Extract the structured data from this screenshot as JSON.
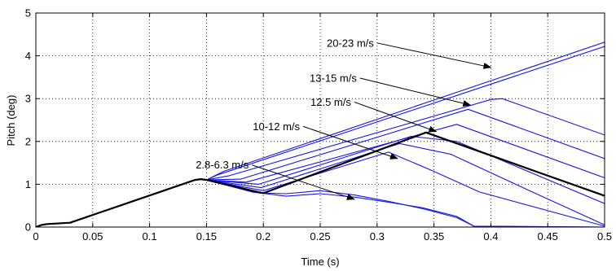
{
  "chart_data": {
    "type": "line",
    "xlabel": "Time (s)",
    "ylabel": "Pitch (deg)",
    "xlim": [
      0,
      0.5
    ],
    "ylim": [
      0,
      5
    ],
    "xticks": [
      0,
      0.05,
      0.1,
      0.15,
      0.2,
      0.25,
      0.3,
      0.35,
      0.4,
      0.45,
      0.5
    ],
    "xtick_labels": [
      "0",
      "0.05",
      "0.1",
      "0.15",
      "0.2",
      "0.25",
      "0.3",
      "0.35",
      "0.4",
      "0.45",
      "0.5"
    ],
    "yticks": [
      0,
      1,
      2,
      3,
      4,
      5
    ],
    "ytick_labels": [
      "0",
      "1",
      "2",
      "3",
      "4",
      "5"
    ],
    "grid": "dotted",
    "colors": {
      "series": "#1515e6",
      "highlight": "#000000"
    },
    "series": [
      {
        "highlight": false,
        "x": [
          0,
          0.005,
          0.01,
          0.03,
          0.14,
          0.145,
          0.15,
          0.19,
          0.22,
          0.25,
          0.28,
          0.31,
          0.34,
          0.37,
          0.385,
          0.5
        ],
        "y": [
          0,
          0.05,
          0.07,
          0.1,
          1.1,
          1.12,
          1.1,
          0.82,
          0.72,
          0.78,
          0.7,
          0.58,
          0.45,
          0.25,
          0.02,
          0.0
        ]
      },
      {
        "highlight": false,
        "x": [
          0,
          0.005,
          0.01,
          0.03,
          0.14,
          0.145,
          0.15,
          0.195,
          0.22,
          0.25,
          0.28,
          0.31,
          0.34,
          0.37,
          0.385,
          0.5
        ],
        "y": [
          0,
          0.05,
          0.07,
          0.1,
          1.1,
          1.12,
          1.1,
          0.8,
          0.78,
          0.85,
          0.75,
          0.6,
          0.43,
          0.22,
          0.02,
          0.0
        ]
      },
      {
        "highlight": false,
        "x": [
          0,
          0.005,
          0.01,
          0.03,
          0.14,
          0.145,
          0.15,
          0.2,
          0.31,
          0.35,
          0.39,
          0.5
        ],
        "y": [
          0,
          0.05,
          0.07,
          0.1,
          1.1,
          1.12,
          1.1,
          0.85,
          1.75,
          1.3,
          0.82,
          0.02
        ]
      },
      {
        "highlight": false,
        "x": [
          0,
          0.005,
          0.01,
          0.03,
          0.14,
          0.145,
          0.15,
          0.198,
          0.32,
          0.365,
          0.43,
          0.5
        ],
        "y": [
          0,
          0.05,
          0.07,
          0.1,
          1.1,
          1.12,
          1.1,
          0.92,
          1.95,
          1.7,
          0.9,
          0.05
        ]
      },
      {
        "highlight": false,
        "x": [
          0,
          0.005,
          0.01,
          0.03,
          0.14,
          0.145,
          0.15,
          0.196,
          0.33,
          0.37,
          0.5
        ],
        "y": [
          0,
          0.05,
          0.07,
          0.1,
          1.1,
          1.12,
          1.1,
          1.0,
          2.12,
          2.0,
          0.55
        ]
      },
      {
        "highlight": true,
        "x": [
          0,
          0.005,
          0.01,
          0.03,
          0.14,
          0.145,
          0.15,
          0.2,
          0.343,
          0.5
        ],
        "y": [
          0,
          0.05,
          0.07,
          0.1,
          1.1,
          1.12,
          1.1,
          0.79,
          2.21,
          0.73
        ]
      },
      {
        "highlight": false,
        "x": [
          0,
          0.005,
          0.01,
          0.03,
          0.14,
          0.145,
          0.15,
          0.185,
          0.37,
          0.5
        ],
        "y": [
          0,
          0.05,
          0.07,
          0.1,
          1.1,
          1.12,
          1.1,
          1.05,
          2.4,
          1.15
        ]
      },
      {
        "highlight": false,
        "x": [
          0,
          0.005,
          0.01,
          0.03,
          0.14,
          0.145,
          0.15,
          0.18,
          0.38,
          0.5
        ],
        "y": [
          0,
          0.05,
          0.07,
          0.1,
          1.1,
          1.12,
          1.1,
          1.12,
          2.75,
          1.6
        ]
      },
      {
        "highlight": false,
        "x": [
          0,
          0.005,
          0.01,
          0.03,
          0.14,
          0.145,
          0.15,
          0.17,
          0.4,
          0.41,
          0.5
        ],
        "y": [
          0,
          0.05,
          0.07,
          0.1,
          1.1,
          1.12,
          1.1,
          1.2,
          2.98,
          3.0,
          2.15
        ]
      },
      {
        "highlight": false,
        "x": [
          0,
          0.005,
          0.01,
          0.03,
          0.14,
          0.145,
          0.15,
          0.165,
          0.5
        ],
        "y": [
          0,
          0.05,
          0.07,
          0.1,
          1.1,
          1.12,
          1.1,
          1.3,
          4.32
        ]
      },
      {
        "highlight": false,
        "x": [
          0,
          0.005,
          0.01,
          0.03,
          0.14,
          0.145,
          0.15,
          0.16,
          0.5
        ],
        "y": [
          0,
          0.05,
          0.07,
          0.1,
          1.1,
          1.12,
          1.1,
          1.22,
          4.22
        ]
      }
    ],
    "annotations": [
      {
        "text": "20-23 m/s",
        "anchor": [
          0.3,
          4.3
        ],
        "target": [
          0.4,
          3.73
        ]
      },
      {
        "text": "13-15 m/s",
        "anchor": [
          0.285,
          3.48
        ],
        "target": [
          0.382,
          2.85
        ]
      },
      {
        "text": "12.5 m/s",
        "anchor": [
          0.28,
          2.92
        ],
        "target": [
          0.352,
          2.23
        ]
      },
      {
        "text": "10-12 m/s",
        "anchor": [
          0.235,
          2.35
        ],
        "target": [
          0.318,
          1.6
        ]
      },
      {
        "text": "2.8-6.3 m/s",
        "anchor": [
          0.19,
          1.45
        ],
        "target": [
          0.28,
          0.65
        ]
      }
    ]
  }
}
